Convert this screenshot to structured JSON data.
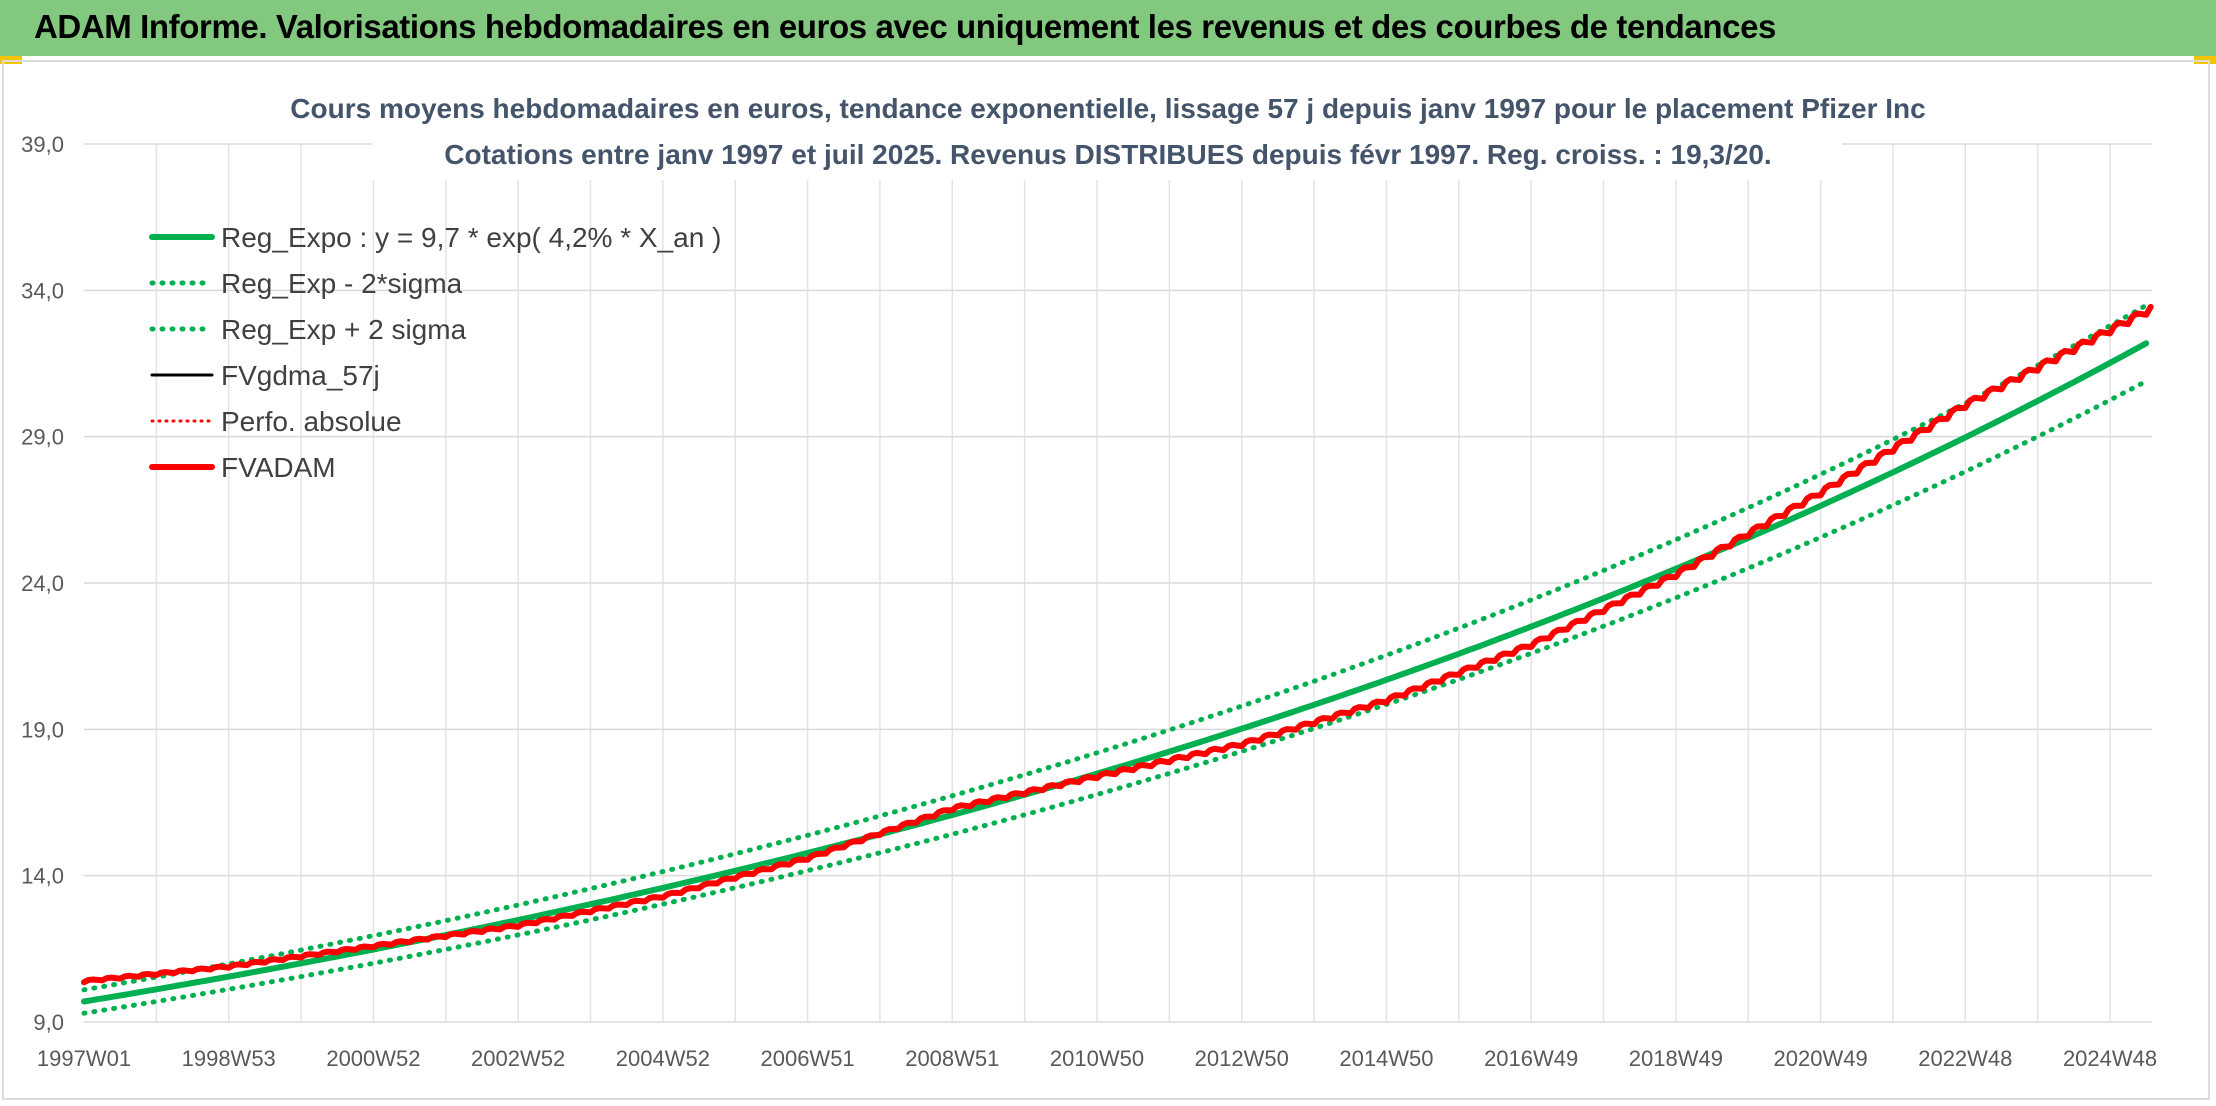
{
  "header": {
    "title": "ADAM Informe. Valorisations hebdomadaires en euros avec uniquement les revenus et des courbes de tendances",
    "bg_color": "#82c97f"
  },
  "chart_data": {
    "type": "line",
    "title_lines": [
      "Cours moyens hebdomadaires en euros, tendance exponentielle, lissage 57 j depuis janv 1997 pour le placement Pfizer Inc",
      "Cotations entre janv 1997 et juil 2025. Revenus DISTRIBUES depuis févr 1997. Reg. croiss. : 19,3/20."
    ],
    "ylim": [
      9.0,
      39.0
    ],
    "y_ticks": [
      {
        "value": 9.0,
        "label": "9,0"
      },
      {
        "value": 14.0,
        "label": "14,0"
      },
      {
        "value": 19.0,
        "label": "19,0"
      },
      {
        "value": 24.0,
        "label": "24,0"
      },
      {
        "value": 29.0,
        "label": "29,0"
      },
      {
        "value": 34.0,
        "label": "34,0"
      },
      {
        "value": 39.0,
        "label": "39,0"
      }
    ],
    "xlim": [
      1997.0,
      2025.58
    ],
    "x_ticks": [
      {
        "value": 1997.0,
        "label": "1997W01"
      },
      {
        "value": 1999.0,
        "label": "1998W53"
      },
      {
        "value": 2001.0,
        "label": "2000W52"
      },
      {
        "value": 2003.0,
        "label": "2002W52"
      },
      {
        "value": 2005.0,
        "label": "2004W52"
      },
      {
        "value": 2007.0,
        "label": "2006W51"
      },
      {
        "value": 2009.0,
        "label": "2008W51"
      },
      {
        "value": 2011.0,
        "label": "2010W50"
      },
      {
        "value": 2013.0,
        "label": "2012W50"
      },
      {
        "value": 2015.0,
        "label": "2014W50"
      },
      {
        "value": 2017.0,
        "label": "2016W49"
      },
      {
        "value": 2019.0,
        "label": "2018W49"
      },
      {
        "value": 2021.0,
        "label": "2020W49"
      },
      {
        "value": 2023.0,
        "label": "2022W48"
      },
      {
        "value": 2025.0,
        "label": "2024W48"
      }
    ],
    "grid": true,
    "legend_position": "top-left",
    "series": [
      {
        "name": "Reg_Expo : y = 9,7 * exp( 4,2% *  X_an )",
        "color": "#00b050",
        "style": "solid",
        "points": [
          [
            1997.0,
            9.7
          ],
          [
            2001.0,
            11.5
          ],
          [
            2005.0,
            13.6
          ],
          [
            2009.0,
            16.1
          ],
          [
            2013.0,
            19.1
          ],
          [
            2017.0,
            22.6
          ],
          [
            2021.0,
            26.8
          ],
          [
            2025.58,
            32.3
          ]
        ]
      },
      {
        "name": "Reg_Exp - 2*sigma",
        "color": "#00b050",
        "style": "dotted",
        "points": [
          [
            1997.0,
            9.3
          ],
          [
            2001.0,
            11.0
          ],
          [
            2005.0,
            13.1
          ],
          [
            2009.0,
            15.5
          ],
          [
            2013.0,
            18.4
          ],
          [
            2017.0,
            21.8
          ],
          [
            2021.0,
            25.8
          ],
          [
            2025.58,
            31.0
          ]
        ]
      },
      {
        "name": "Reg_Exp + 2 sigma",
        "color": "#00b050",
        "style": "dotted",
        "points": [
          [
            1997.0,
            10.1
          ],
          [
            2001.0,
            12.0
          ],
          [
            2005.0,
            14.2
          ],
          [
            2009.0,
            16.8
          ],
          [
            2013.0,
            19.9
          ],
          [
            2017.0,
            23.6
          ],
          [
            2021.0,
            27.8
          ],
          [
            2025.58,
            33.6
          ]
        ]
      },
      {
        "name": "FVgdma_57j",
        "color": "#000000",
        "style": "solid",
        "points": [
          [
            1997.0,
            10.4
          ],
          [
            1999.0,
            10.9
          ],
          [
            2001.0,
            11.6
          ],
          [
            2003.0,
            12.3
          ],
          [
            2005.0,
            13.3
          ],
          [
            2007.0,
            14.6
          ],
          [
            2009.0,
            16.3
          ],
          [
            2011.0,
            17.4
          ],
          [
            2013.0,
            18.5
          ],
          [
            2015.0,
            20.0
          ],
          [
            2017.0,
            21.9
          ],
          [
            2019.0,
            24.3
          ],
          [
            2021.0,
            27.1
          ],
          [
            2023.0,
            30.1
          ],
          [
            2025.58,
            33.4
          ]
        ]
      },
      {
        "name": "Perfo. absolue",
        "color": "#ff0000",
        "style": "dotted",
        "points": [
          [
            1997.0,
            10.4
          ],
          [
            1999.0,
            10.9
          ],
          [
            2001.0,
            11.6
          ],
          [
            2003.0,
            12.3
          ],
          [
            2005.0,
            13.3
          ],
          [
            2007.0,
            14.6
          ],
          [
            2009.0,
            16.3
          ],
          [
            2011.0,
            17.4
          ],
          [
            2013.0,
            18.5
          ],
          [
            2015.0,
            20.0
          ],
          [
            2017.0,
            21.9
          ],
          [
            2019.0,
            24.3
          ],
          [
            2021.0,
            27.1
          ],
          [
            2023.0,
            30.1
          ],
          [
            2025.58,
            33.4
          ]
        ]
      },
      {
        "name": "FVADAM",
        "color": "#ff0000",
        "style": "solid",
        "points": [
          [
            1997.0,
            10.4
          ],
          [
            1999.0,
            10.9
          ],
          [
            2001.0,
            11.6
          ],
          [
            2003.0,
            12.3
          ],
          [
            2005.0,
            13.3
          ],
          [
            2007.0,
            14.6
          ],
          [
            2009.0,
            16.3
          ],
          [
            2011.0,
            17.4
          ],
          [
            2013.0,
            18.5
          ],
          [
            2015.0,
            20.0
          ],
          [
            2017.0,
            21.9
          ],
          [
            2019.0,
            24.3
          ],
          [
            2021.0,
            27.1
          ],
          [
            2023.0,
            30.1
          ],
          [
            2025.58,
            33.4
          ]
        ]
      }
    ]
  }
}
